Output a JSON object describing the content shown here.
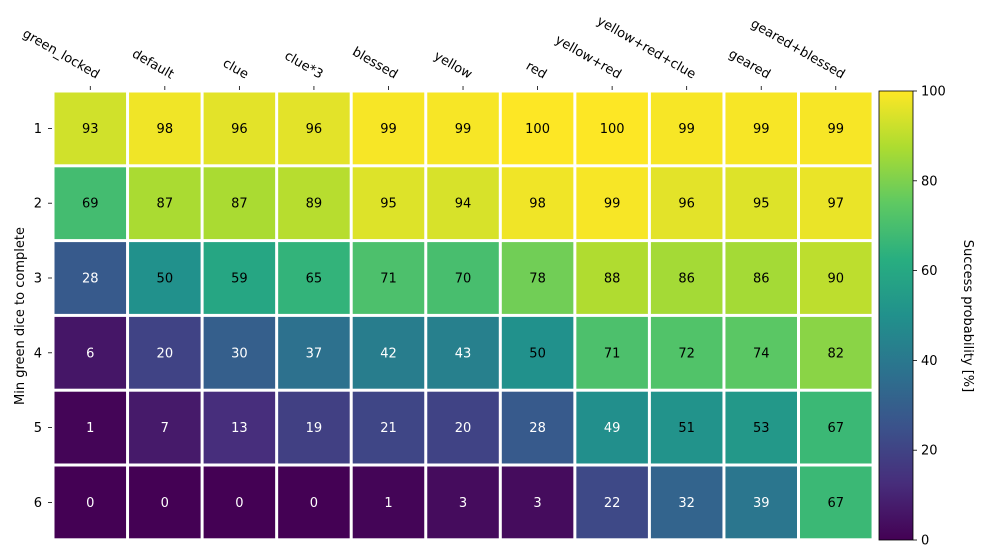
{
  "chart_data": {
    "type": "heatmap",
    "columns": [
      "green_locked",
      "default",
      "clue",
      "clue*3",
      "blessed",
      "yellow",
      "red",
      "yellow+red",
      "yellow+red+clue",
      "geared",
      "geared+blessed"
    ],
    "rows": [
      "1",
      "2",
      "3",
      "4",
      "5",
      "6"
    ],
    "values": [
      [
        93,
        98,
        96,
        96,
        99,
        99,
        100,
        100,
        99,
        99,
        99
      ],
      [
        69,
        87,
        87,
        89,
        95,
        94,
        98,
        99,
        96,
        95,
        97
      ],
      [
        28,
        50,
        59,
        65,
        71,
        70,
        78,
        88,
        86,
        86,
        90
      ],
      [
        6,
        20,
        30,
        37,
        42,
        43,
        50,
        71,
        72,
        74,
        82
      ],
      [
        1,
        7,
        13,
        19,
        21,
        20,
        28,
        49,
        51,
        53,
        67
      ],
      [
        0,
        0,
        0,
        0,
        1,
        3,
        3,
        22,
        32,
        39,
        67
      ]
    ],
    "ylabel": "Min green dice to complete",
    "colorbar": {
      "label": "Success probability [%]",
      "range": [
        0,
        100
      ],
      "ticks": [
        "0",
        "20",
        "40",
        "60",
        "80",
        "100"
      ],
      "colormap": "viridis"
    },
    "x_axis_position": "top"
  }
}
